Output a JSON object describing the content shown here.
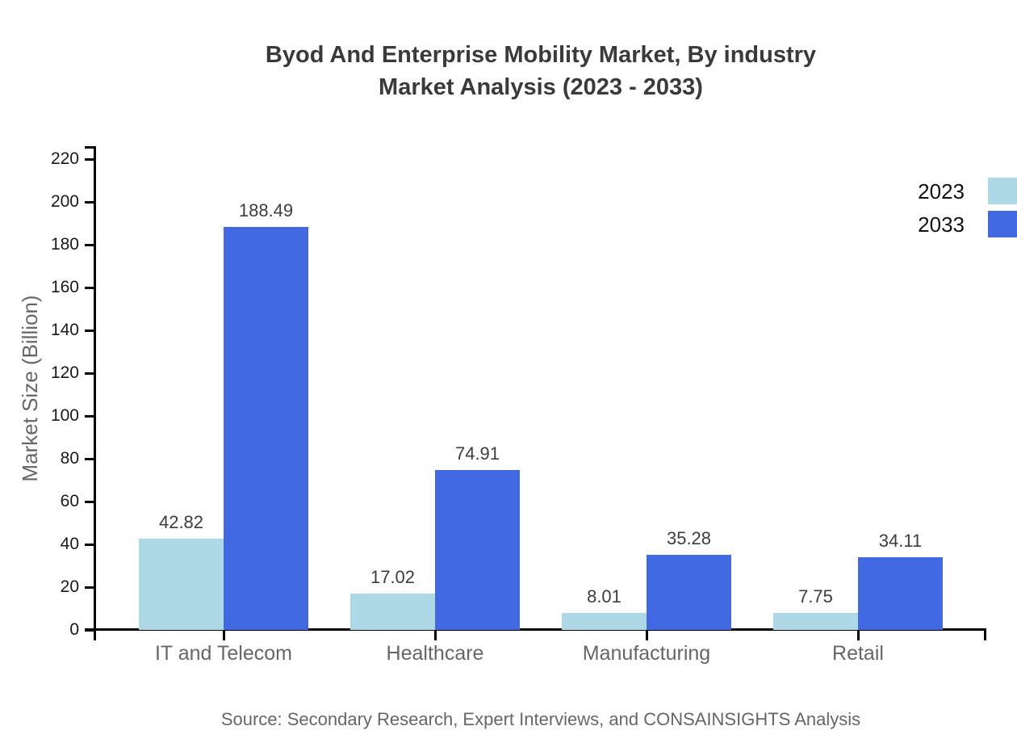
{
  "title": {
    "line1": "Byod And Enterprise Mobility Market, By industry",
    "line2": "Market Analysis (2023 - 2033)"
  },
  "source": "Source: Secondary Research, Expert Interviews, and CONSAINSIGHTS Analysis",
  "colors": {
    "series_2023": "#ADD8E6",
    "series_2033": "#4169E1",
    "axis": "#000000",
    "title_text": "#3a3a3a",
    "value_label_text": "#3d3d3d",
    "muted_text": "#666666",
    "tick_label_text": "#1a1a1a"
  },
  "chart_data": {
    "type": "bar",
    "title": "Byod And Enterprise Mobility Market, By industry Market Analysis (2023 - 2033)",
    "categories": [
      "IT and Telecom",
      "Healthcare",
      "Manufacturing",
      "Retail"
    ],
    "series": [
      {
        "name": "2023",
        "color": "#ADD8E6",
        "values": [
          42.82,
          17.02,
          8.01,
          7.75
        ]
      },
      {
        "name": "2033",
        "color": "#4169E1",
        "values": [
          188.49,
          74.91,
          35.28,
          34.11
        ]
      }
    ],
    "value_labels": [
      "42.82",
      "188.49",
      "17.02",
      "74.91",
      "8.01",
      "35.28",
      "7.75",
      "34.11"
    ],
    "xlabel": "",
    "ylabel": "Market Size (Billion)",
    "ylim": [
      0,
      220
    ],
    "yticks": [
      0,
      20,
      40,
      60,
      80,
      100,
      120,
      140,
      160,
      180,
      200,
      220
    ],
    "grid": false,
    "legend_position": "top-right",
    "show_value_labels": true
  }
}
